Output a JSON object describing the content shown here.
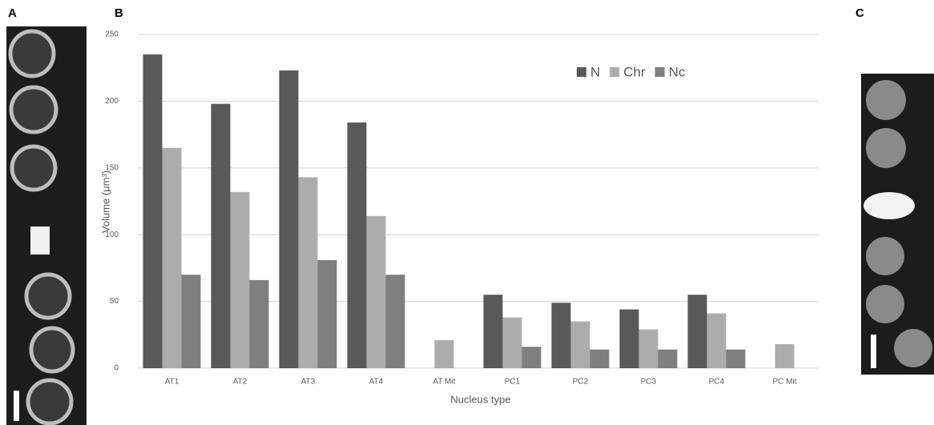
{
  "panels": {
    "a": "A",
    "b": "B",
    "c": "C"
  },
  "chart_data": {
    "type": "bar",
    "x_label": "Nucleus type",
    "y_label": "Volume (μm³)",
    "categories": [
      "AT1",
      "AT2",
      "AT3",
      "AT4",
      "AT Mit",
      "PC1",
      "PC2",
      "PC3",
      "PC4",
      "PC Mit"
    ],
    "series": [
      {
        "name": "N",
        "color": "#595959",
        "values": [
          235,
          198,
          223,
          184,
          null,
          55,
          49,
          44,
          55,
          null
        ]
      },
      {
        "name": "Chr",
        "color": "#acacac",
        "values": [
          165,
          132,
          143,
          114,
          21,
          38,
          35,
          29,
          41,
          18
        ]
      },
      {
        "name": "Nc",
        "color": "#7f7f7f",
        "values": [
          70,
          66,
          81,
          70,
          null,
          16,
          14,
          14,
          14,
          null
        ]
      }
    ],
    "ylim": [
      0,
      250
    ],
    "yticks": [
      0,
      50,
      100,
      150,
      200,
      250
    ],
    "grid": true,
    "legend": "top-right"
  }
}
